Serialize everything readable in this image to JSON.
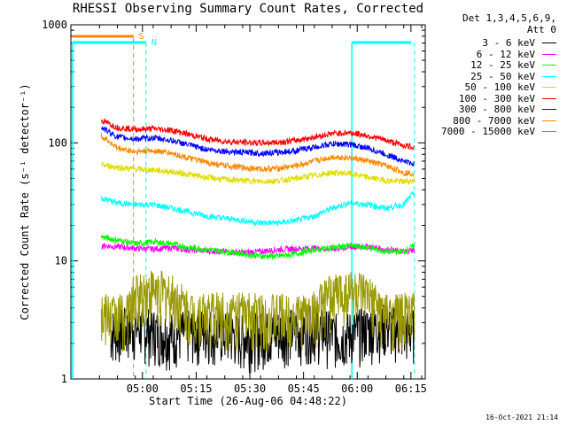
{
  "chart_data": {
    "type": "line",
    "title": "RHESSI Observing Summary Count Rates, Corrected",
    "xlabel": "Start Time (26-Aug-06 04:48:22)",
    "ylabel": "Corrected Count Rate (s⁻¹ detector⁻¹)",
    "x_ticks": [
      "05:00",
      "05:15",
      "05:30",
      "05:45",
      "06:00",
      "06:15"
    ],
    "x_tick_values": [
      12,
      27,
      42,
      57,
      72,
      87
    ],
    "xlim": [
      -8,
      91
    ],
    "y_scale": "log",
    "ylim": [
      1,
      1000
    ],
    "y_ticks": [
      "1",
      "10",
      "100",
      "1000"
    ],
    "legend_header": [
      "Det 1,3,4,5,6,9,",
      "Att 0"
    ],
    "legend_position": "top-right",
    "series": [
      {
        "name": "3 - 6 keV",
        "color": "#000000",
        "points": [
          [
            3,
            2.2
          ],
          [
            10,
            2.4
          ],
          [
            20,
            2.1
          ],
          [
            30,
            2.3
          ],
          [
            40,
            2.0
          ],
          [
            50,
            2.2
          ],
          [
            60,
            2.4
          ],
          [
            67,
            2.0
          ],
          [
            74,
            2.3
          ],
          [
            80,
            2.5
          ],
          [
            86,
            2.2
          ],
          [
            88,
            2.3
          ]
        ]
      },
      {
        "name": "6 - 12 keV",
        "color": "#ff00ff",
        "points": [
          [
            0.5,
            13.5
          ],
          [
            5,
            13.2
          ],
          [
            10,
            12.8
          ],
          [
            15,
            12.6
          ],
          [
            20,
            12.9
          ],
          [
            25,
            12.4
          ],
          [
            30,
            12.2
          ],
          [
            35,
            12.0
          ],
          [
            40,
            11.8
          ],
          [
            45,
            12.0
          ],
          [
            50,
            12.5
          ],
          [
            55,
            12.7
          ],
          [
            60,
            12.8
          ],
          [
            65,
            12.6
          ],
          [
            70,
            13.0
          ],
          [
            75,
            13.3
          ],
          [
            80,
            12.5
          ],
          [
            85,
            12.0
          ],
          [
            88,
            12.5
          ]
        ]
      },
      {
        "name": "12 - 25 keV",
        "color": "#00ff00",
        "points": [
          [
            0.5,
            16.0
          ],
          [
            5,
            15.0
          ],
          [
            10,
            14.0
          ],
          [
            15,
            14.5
          ],
          [
            20,
            14.0
          ],
          [
            25,
            13.0
          ],
          [
            30,
            12.5
          ],
          [
            35,
            12.0
          ],
          [
            40,
            11.5
          ],
          [
            45,
            11.0
          ],
          [
            50,
            11.0
          ],
          [
            55,
            11.5
          ],
          [
            60,
            12.5
          ],
          [
            65,
            13.0
          ],
          [
            70,
            13.5
          ],
          [
            75,
            13.0
          ],
          [
            80,
            12.0
          ],
          [
            85,
            12.0
          ],
          [
            88,
            13.5
          ]
        ]
      },
      {
        "name": "25 - 50 keV",
        "color": "#00ffff",
        "points": [
          [
            0.5,
            34
          ],
          [
            5,
            31
          ],
          [
            10,
            30
          ],
          [
            15,
            30
          ],
          [
            20,
            28
          ],
          [
            25,
            26
          ],
          [
            30,
            24
          ],
          [
            35,
            23
          ],
          [
            40,
            22
          ],
          [
            45,
            21
          ],
          [
            50,
            21
          ],
          [
            55,
            22
          ],
          [
            60,
            24
          ],
          [
            65,
            28
          ],
          [
            70,
            31
          ],
          [
            75,
            30
          ],
          [
            80,
            28
          ],
          [
            85,
            30
          ],
          [
            88,
            38
          ]
        ]
      },
      {
        "name": "50 - 100 keV",
        "color": "#dddd00",
        "points": [
          [
            0.5,
            65
          ],
          [
            5,
            62
          ],
          [
            10,
            60
          ],
          [
            15,
            59
          ],
          [
            20,
            57
          ],
          [
            25,
            54
          ],
          [
            30,
            51
          ],
          [
            35,
            49
          ],
          [
            40,
            48
          ],
          [
            45,
            47
          ],
          [
            50,
            48
          ],
          [
            55,
            50
          ],
          [
            60,
            53
          ],
          [
            65,
            56
          ],
          [
            70,
            55
          ],
          [
            75,
            51
          ],
          [
            80,
            48
          ],
          [
            85,
            47
          ],
          [
            88,
            48
          ]
        ]
      },
      {
        "name": "100 - 300 keV",
        "color": "#ff0000",
        "points": [
          [
            0.5,
            155
          ],
          [
            5,
            135
          ],
          [
            10,
            130
          ],
          [
            15,
            132
          ],
          [
            20,
            128
          ],
          [
            25,
            118
          ],
          [
            30,
            108
          ],
          [
            35,
            103
          ],
          [
            40,
            101
          ],
          [
            45,
            100
          ],
          [
            50,
            101
          ],
          [
            55,
            105
          ],
          [
            60,
            112
          ],
          [
            65,
            120
          ],
          [
            70,
            122
          ],
          [
            75,
            115
          ],
          [
            80,
            105
          ],
          [
            85,
            95
          ],
          [
            88,
            92
          ]
        ]
      },
      {
        "name": "300 - 800 keV",
        "color": "#0000ff",
        "points": [
          [
            0.5,
            135
          ],
          [
            5,
            112
          ],
          [
            10,
            108
          ],
          [
            15,
            110
          ],
          [
            20,
            105
          ],
          [
            25,
            96
          ],
          [
            30,
            88
          ],
          [
            35,
            85
          ],
          [
            40,
            83
          ],
          [
            45,
            82
          ],
          [
            50,
            83
          ],
          [
            55,
            86
          ],
          [
            60,
            92
          ],
          [
            65,
            98
          ],
          [
            70,
            97
          ],
          [
            75,
            90
          ],
          [
            80,
            80
          ],
          [
            85,
            70
          ],
          [
            88,
            66
          ]
        ]
      },
      {
        "name": "800 - 7000 keV",
        "color": "#ff8800",
        "points": [
          [
            0.5,
            115
          ],
          [
            5,
            90
          ],
          [
            10,
            84
          ],
          [
            15,
            86
          ],
          [
            20,
            82
          ],
          [
            25,
            74
          ],
          [
            30,
            68
          ],
          [
            35,
            64
          ],
          [
            40,
            62
          ],
          [
            45,
            60
          ],
          [
            50,
            61
          ],
          [
            55,
            64
          ],
          [
            60,
            70
          ],
          [
            65,
            76
          ],
          [
            70,
            75
          ],
          [
            75,
            70
          ],
          [
            80,
            64
          ],
          [
            85,
            56
          ],
          [
            88,
            55
          ]
        ]
      },
      {
        "name": "7000 - 15000 keV",
        "color": "#999900",
        "points": [
          [
            0.5,
            3.0
          ],
          [
            8,
            3.1
          ],
          [
            10,
            4.5
          ],
          [
            15,
            5.0
          ],
          [
            20,
            4.5
          ],
          [
            25,
            3.2
          ],
          [
            40,
            3.1
          ],
          [
            55,
            3.0
          ],
          [
            60,
            3.2
          ],
          [
            65,
            4.5
          ],
          [
            70,
            5.0
          ],
          [
            75,
            4.2
          ],
          [
            80,
            3.0
          ],
          [
            88,
            3.1
          ]
        ]
      }
    ],
    "flag_labels": [
      {
        "text": "S",
        "color": "#ff8800"
      },
      {
        "text": "N",
        "color": "#00ffff"
      }
    ]
  },
  "footer_timestamp": "16-Oct-2021 21:14"
}
